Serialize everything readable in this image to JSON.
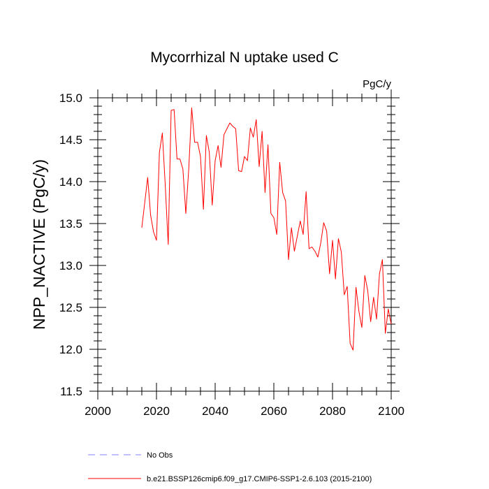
{
  "chart_data": {
    "type": "line",
    "title": "Mycorrhizal N uptake used C",
    "units": "PgC/y",
    "xlabel": "",
    "ylabel": "NPP_NACTIVE  (PgC/y)",
    "xlim": [
      2000,
      2100
    ],
    "ylim": [
      11.5,
      15.0
    ],
    "xticks": [
      2000,
      2020,
      2040,
      2060,
      2080,
      2100
    ],
    "xtick_labels": [
      "2000",
      "2020",
      "2040",
      "2060",
      "2080",
      "2100"
    ],
    "yticks": [
      11.5,
      12.0,
      12.5,
      13.0,
      13.5,
      14.0,
      14.5,
      15.0
    ],
    "ytick_labels": [
      "11.5",
      "12.0",
      "12.5",
      "13.0",
      "13.5",
      "14.0",
      "14.5",
      "15.0"
    ],
    "grid": false,
    "legend_position": "bottom",
    "series": [
      {
        "name": "b.e21.BSSP126cmip6.f09_g17.CMIP6-SSP1-2.6.103 (2015-2100)",
        "color": "#ff0000",
        "style": "solid",
        "x": [
          2015,
          2016,
          2017,
          2018,
          2019,
          2020,
          2021,
          2022,
          2023,
          2024,
          2025,
          2026,
          2027,
          2028,
          2029,
          2030,
          2031,
          2032,
          2033,
          2034,
          2035,
          2036,
          2037,
          2038,
          2039,
          2040,
          2041,
          2042,
          2043,
          2044,
          2045,
          2046,
          2047,
          2048,
          2049,
          2050,
          2051,
          2052,
          2053,
          2054,
          2055,
          2056,
          2057,
          2058,
          2059,
          2060,
          2061,
          2062,
          2063,
          2064,
          2065,
          2066,
          2067,
          2068,
          2069,
          2070,
          2071,
          2072,
          2073,
          2074,
          2075,
          2076,
          2077,
          2078,
          2079,
          2080,
          2081,
          2082,
          2083,
          2084,
          2085,
          2086,
          2087,
          2088,
          2089,
          2090,
          2091,
          2092,
          2093,
          2094,
          2095,
          2096,
          2097,
          2098,
          2099,
          2100
        ],
        "values": [
          13.45,
          13.75,
          14.05,
          13.6,
          13.4,
          13.3,
          14.35,
          14.58,
          13.95,
          13.25,
          14.85,
          14.86,
          14.27,
          14.27,
          14.15,
          13.62,
          14.15,
          14.88,
          14.47,
          14.47,
          14.3,
          13.67,
          14.55,
          14.35,
          13.72,
          14.25,
          14.43,
          14.17,
          14.56,
          14.63,
          14.7,
          14.66,
          14.63,
          14.13,
          14.12,
          14.3,
          14.25,
          14.64,
          14.53,
          14.74,
          14.18,
          14.6,
          13.87,
          14.44,
          13.62,
          13.57,
          13.37,
          14.23,
          13.87,
          13.77,
          13.07,
          13.45,
          13.17,
          13.35,
          13.53,
          13.37,
          13.88,
          13.2,
          13.22,
          13.17,
          13.1,
          13.27,
          13.51,
          13.41,
          12.9,
          13.3,
          12.84,
          13.32,
          13.16,
          12.65,
          12.75,
          12.07,
          11.99,
          12.74,
          12.45,
          12.26,
          12.88,
          12.7,
          12.33,
          12.62,
          12.36,
          12.9,
          13.07,
          12.19,
          12.48,
          12.3
        ]
      }
    ],
    "reference": {
      "name": "No Obs",
      "color": "#8080ff",
      "style": "dashed"
    }
  }
}
